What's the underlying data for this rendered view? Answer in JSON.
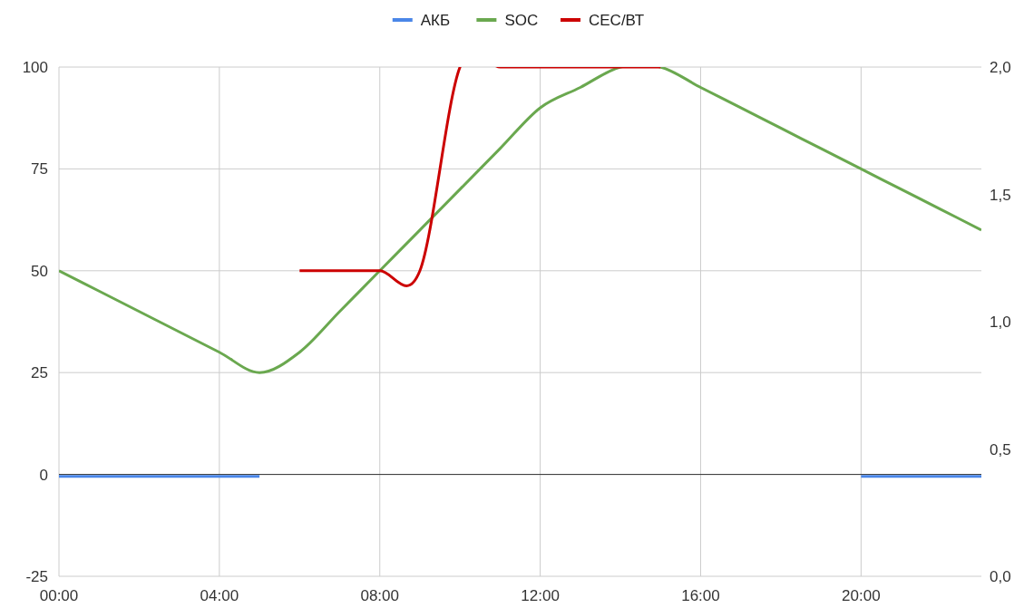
{
  "chart_data": {
    "type": "line",
    "x": [
      0,
      1,
      2,
      3,
      4,
      5,
      6,
      7,
      8,
      9,
      10,
      11,
      12,
      13,
      14,
      15,
      16,
      17,
      18,
      19,
      20,
      21,
      22,
      23
    ],
    "xlim": [
      0,
      23
    ],
    "xticks": [
      {
        "value": 0,
        "label": "00:00"
      },
      {
        "value": 4,
        "label": "04:00"
      },
      {
        "value": 8,
        "label": "08:00"
      },
      {
        "value": 12,
        "label": "12:00"
      },
      {
        "value": 16,
        "label": "16:00"
      },
      {
        "value": 20,
        "label": "20:00"
      }
    ],
    "ylim": [
      -25,
      100
    ],
    "yticks": [
      -25,
      0,
      25,
      50,
      75,
      100
    ],
    "y2lim": [
      0,
      2
    ],
    "y2ticks": [
      {
        "value": 0,
        "label": "0,0"
      },
      {
        "value": 0.5,
        "label": "0,5"
      },
      {
        "value": 1,
        "label": "1,0"
      },
      {
        "value": 1.5,
        "label": "1,5"
      },
      {
        "value": 2,
        "label": "2,0"
      }
    ],
    "series": [
      {
        "name": "АКБ",
        "color": "#4a86e8",
        "values": [
          -0.5,
          -0.5,
          -0.5,
          -0.5,
          -0.5,
          -0.5,
          null,
          null,
          null,
          null,
          null,
          null,
          null,
          null,
          null,
          null,
          null,
          null,
          null,
          null,
          -0.5,
          -0.5,
          -0.5,
          -0.5
        ]
      },
      {
        "name": "SOC",
        "color": "#6aa84f",
        "values": [
          50,
          45,
          40,
          35,
          30,
          25,
          30,
          40,
          50,
          60,
          70,
          80,
          90,
          95,
          100,
          100,
          95,
          90,
          85,
          80,
          75,
          70,
          65,
          60
        ]
      },
      {
        "name": "СЕС/ВТ",
        "color": "#cc0000",
        "axis": "y2",
        "values": [
          null,
          null,
          null,
          null,
          null,
          null,
          1.2,
          1.2,
          1.2,
          1.2,
          2,
          2,
          2,
          2,
          2,
          2,
          null,
          null,
          null,
          null,
          null,
          null,
          null,
          null
        ]
      }
    ],
    "ref_lines": [
      {
        "axis": "y",
        "value": 0,
        "color": "#333333"
      }
    ],
    "grid": true,
    "legend": "top"
  }
}
